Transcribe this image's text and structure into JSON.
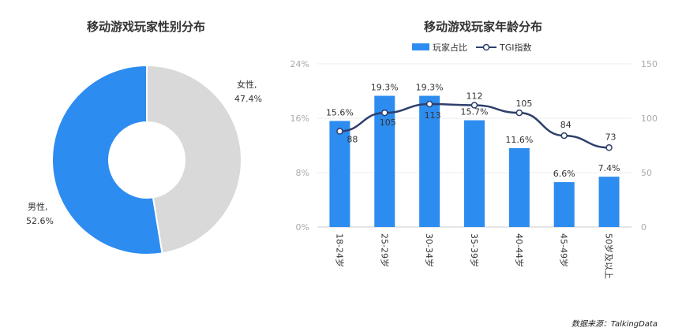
{
  "source": "数据来源：TalkingData",
  "colors": {
    "blue": "#2d8cf0",
    "grey": "#d9d9d9",
    "navy": "#2f3f6b",
    "axis": "#cccccc",
    "tick": "#aaaaaa"
  },
  "chart_data": [
    {
      "type": "pie",
      "title": "移动游戏玩家性别分布",
      "slices": [
        {
          "label": "女性,",
          "pct_text": "47.4%",
          "value": 47.4,
          "color": "#d9d9d9"
        },
        {
          "label": "男性,",
          "pct_text": "52.6%",
          "value": 52.6,
          "color": "#2d8cf0"
        }
      ]
    },
    {
      "type": "bar",
      "title": "移动游戏玩家年龄分布",
      "categories": [
        "18-24岁",
        "25-29岁",
        "30-34岁",
        "35-39岁",
        "40-44岁",
        "45-49岁",
        "50岁及以上"
      ],
      "series": [
        {
          "name": "玩家占比",
          "type": "bar",
          "axis": "left",
          "values": [
            15.6,
            19.3,
            19.3,
            15.7,
            11.6,
            6.6,
            7.4
          ],
          "labels": [
            "15.6%",
            "19.3%",
            "19.3%",
            "15.7%",
            "11.6%",
            "6.6%",
            "7.4%"
          ]
        },
        {
          "name": "TGI指数",
          "type": "line",
          "axis": "right",
          "values": [
            88,
            105,
            113,
            112,
            105,
            84,
            73
          ],
          "labels": [
            "88",
            "105",
            "113",
            "112",
            "105",
            "84",
            "73"
          ]
        }
      ],
      "y_left": {
        "ylim": [
          0,
          24
        ],
        "ticks": [
          "0%",
          "8%",
          "16%",
          "24%"
        ]
      },
      "y_right": {
        "ylim": [
          0,
          150
        ],
        "ticks": [
          "0",
          "50",
          "100",
          "150"
        ]
      },
      "legend": "top-center"
    }
  ]
}
